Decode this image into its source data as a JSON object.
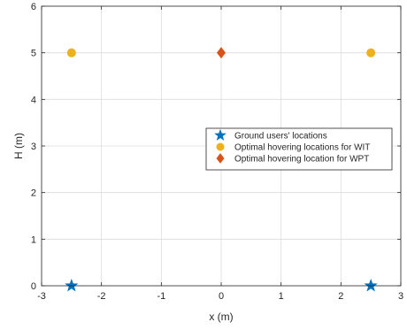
{
  "chart_data": {
    "type": "scatter",
    "xlabel": "x (m)",
    "ylabel": "H (m)",
    "xlim": [
      -3,
      3
    ],
    "ylim": [
      0,
      6
    ],
    "xticks": [
      "-3",
      "-2",
      "-1",
      "0",
      "1",
      "2",
      "3"
    ],
    "yticks": [
      "0",
      "1",
      "2",
      "3",
      "4",
      "5",
      "6"
    ],
    "grid": true,
    "legend_position": "center-right",
    "series": [
      {
        "name": "Ground users' locations",
        "marker": "star",
        "color": "#0072BD",
        "points": [
          {
            "x": -2.5,
            "y": 0
          },
          {
            "x": 2.5,
            "y": 0
          }
        ]
      },
      {
        "name": "Optimal hovering locations for WIT",
        "marker": "circle",
        "color": "#EDB120",
        "points": [
          {
            "x": -2.5,
            "y": 5
          },
          {
            "x": 2.5,
            "y": 5
          }
        ]
      },
      {
        "name": "Optimal hovering location for WPT",
        "marker": "diamond",
        "color": "#D95319",
        "points": [
          {
            "x": 0,
            "y": 5
          }
        ]
      }
    ]
  }
}
